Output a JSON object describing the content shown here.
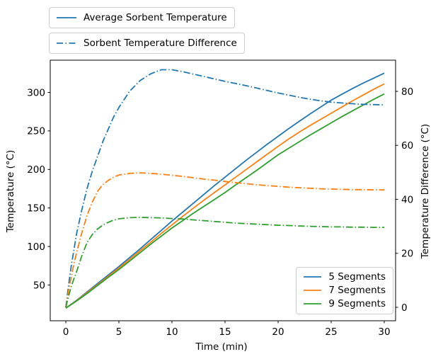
{
  "chart_data": {
    "type": "line",
    "title": "",
    "xlabel": "Time (min)",
    "ylabel_left": "Temperature (°C)",
    "ylabel_right": "Temperature Difference (°C)",
    "x_ticks": [
      0,
      5,
      10,
      15,
      20,
      25,
      30
    ],
    "y_ticks_left": [
      50,
      100,
      150,
      200,
      250,
      300
    ],
    "y_ticks_right": [
      0,
      20,
      40,
      60,
      80
    ],
    "xlim": [
      -1.5,
      31.5
    ],
    "ylim_left": [
      4,
      341.5
    ],
    "ylim_right": [
      -5,
      91.5
    ],
    "grid": false,
    "legend_top": [
      {
        "label": "Average Sorbent Temperature",
        "style": "solid",
        "color": "#1f77b4"
      },
      {
        "label": "Sorbent Temperature Difference",
        "style": "dashdot",
        "color": "#1f77b4"
      }
    ],
    "legend_segments": [
      {
        "label": "5 Segments",
        "color": "#1f77b4"
      },
      {
        "label": "7 Segments",
        "color": "#ff7f0e"
      },
      {
        "label": "9 Segments",
        "color": "#2ca02c"
      }
    ],
    "x": [
      0,
      0.25,
      0.5,
      0.75,
      1,
      1.5,
      2,
      2.5,
      3,
      3.5,
      4,
      4.5,
      5,
      6,
      7,
      8,
      9,
      10,
      11,
      12,
      13,
      14,
      15,
      16,
      17,
      18,
      19,
      20,
      21,
      22,
      23,
      24,
      25,
      26,
      27,
      28,
      29,
      30
    ],
    "series": [
      {
        "name": "5 Segments",
        "measure": "Average Sorbent Temperature",
        "axis": "left",
        "style": "solid",
        "color": "#1f77b4",
        "values": [
          20,
          22.5,
          25,
          27.5,
          30,
          35.5,
          41,
          46.5,
          52,
          57.5,
          63,
          68.5,
          74,
          85.5,
          97,
          109,
          121,
          133,
          144.5,
          156,
          167.5,
          179,
          190,
          201,
          212,
          222.5,
          233,
          243,
          253,
          262.5,
          272,
          281,
          290,
          297.5,
          305,
          312,
          318.5,
          325
        ]
      },
      {
        "name": "7 Segments",
        "measure": "Average Sorbent Temperature",
        "axis": "left",
        "style": "solid",
        "color": "#ff7f0e",
        "values": [
          20,
          22.4,
          24.8,
          27.1,
          29.5,
          34.7,
          40,
          45.3,
          50.5,
          56,
          61.3,
          66.7,
          72,
          83,
          94.5,
          105.5,
          117,
          128,
          139,
          149.5,
          160,
          170,
          180,
          190,
          200,
          210,
          220,
          230,
          239.5,
          248.5,
          257,
          265,
          273,
          281,
          289,
          296.5,
          304,
          311
        ]
      },
      {
        "name": "9 Segments",
        "measure": "Average Sorbent Temperature",
        "axis": "left",
        "style": "solid",
        "color": "#2ca02c",
        "values": [
          20,
          22.3,
          24.5,
          26.8,
          29,
          34,
          39,
          44.2,
          49.5,
          54.7,
          60,
          65,
          70,
          81,
          92,
          103,
          113.5,
          124,
          133.5,
          143,
          152,
          161,
          170,
          180,
          189.5,
          199,
          209,
          219,
          227.5,
          236,
          244.5,
          252.5,
          260.5,
          268.5,
          276,
          283.5,
          291,
          298
        ]
      },
      {
        "name": "5 Segments",
        "measure": "Sorbent Temperature Difference",
        "axis": "right",
        "style": "dashdot",
        "color": "#1f77b4",
        "values": [
          0,
          8,
          15,
          21,
          27,
          36,
          44,
          50.5,
          56,
          61.5,
          66,
          70.5,
          74,
          80,
          84,
          86.5,
          88,
          88,
          87.3,
          86.4,
          85.5,
          84.6,
          83.7,
          82.9,
          82.1,
          81.2,
          80.3,
          79.4,
          78.6,
          77.8,
          77.1,
          76.5,
          76,
          75.7,
          75.4,
          75.2,
          75.1,
          75
        ]
      },
      {
        "name": "7 Segments",
        "measure": "Sorbent Temperature Difference",
        "axis": "right",
        "style": "dashdot",
        "color": "#ff7f0e",
        "values": [
          0,
          6,
          11,
          16,
          20,
          27.5,
          34,
          39,
          43,
          45.5,
          47,
          48.2,
          49,
          49.6,
          49.8,
          49.6,
          49.3,
          48.9,
          48.5,
          48,
          47.5,
          47.1,
          46.6,
          46.2,
          45.8,
          45.4,
          45.1,
          44.8,
          44.5,
          44.3,
          44.1,
          43.9,
          43.8,
          43.7,
          43.6,
          43.6,
          43.5,
          43.5
        ]
      },
      {
        "name": "9 Segments",
        "measure": "Sorbent Temperature Difference",
        "axis": "right",
        "style": "dashdot",
        "color": "#2ca02c",
        "values": [
          0,
          4,
          7.5,
          10.5,
          13,
          19,
          24,
          27,
          29,
          30.5,
          31.5,
          32.3,
          32.8,
          33.2,
          33.3,
          33.2,
          33.1,
          32.9,
          32.7,
          32.4,
          32.1,
          31.8,
          31.5,
          31.2,
          31,
          30.8,
          30.6,
          30.4,
          30.3,
          30.1,
          30,
          29.9,
          29.8,
          29.8,
          29.7,
          29.7,
          29.6,
          29.6
        ]
      }
    ]
  },
  "colors": {
    "blue": "#1f77b4",
    "orange": "#ff7f0e",
    "green": "#2ca02c",
    "legend_border": "#cccccc",
    "text": "#000000"
  }
}
